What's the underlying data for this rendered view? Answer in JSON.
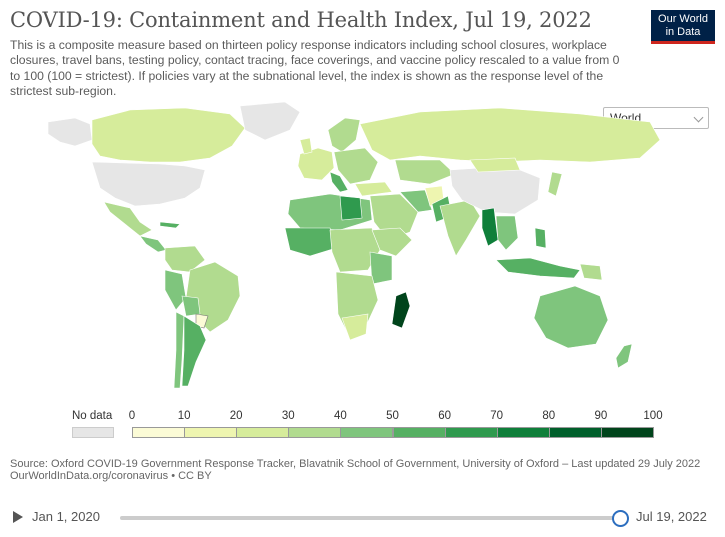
{
  "header": {
    "title": "COVID-19: Containment and Health Index, Jul 19, 2022",
    "subtitle": "This is a composite measure based on thirteen policy response indicators including school closures, workplace closures, travel bans, testing policy, contact tracing, face coverings, and vaccine policy rescaled to a value from 0 to 100 (100 = strictest). If policies vary at the subnational level, the index is shown as the response level of the strictest sub-region.",
    "logo_line1": "Our World",
    "logo_line2": "in Data"
  },
  "region_select": {
    "value": "World"
  },
  "legend": {
    "nodata_label": "No data",
    "ticks": [
      "0",
      "10",
      "20",
      "30",
      "40",
      "50",
      "60",
      "70",
      "80",
      "90",
      "100"
    ],
    "colors": [
      "#fbfbd6",
      "#eef5b0",
      "#d6ec9b",
      "#b1db8f",
      "#7fc57d",
      "#56b063",
      "#2f9a4e",
      "#0f7f3a",
      "#005f2b",
      "#00441b"
    ],
    "nodata_color": "#e6e6e6"
  },
  "source": {
    "line1": "Source: Oxford COVID-19 Government Response Tracker, Blavatnik School of Government, University of Oxford – Last updated 29 July 2022",
    "line2": "OurWorldInData.org/coronavirus • CC BY"
  },
  "timeline": {
    "start_label": "Jan 1, 2020",
    "end_label": "Jul 19, 2022",
    "position": 1.0
  }
}
